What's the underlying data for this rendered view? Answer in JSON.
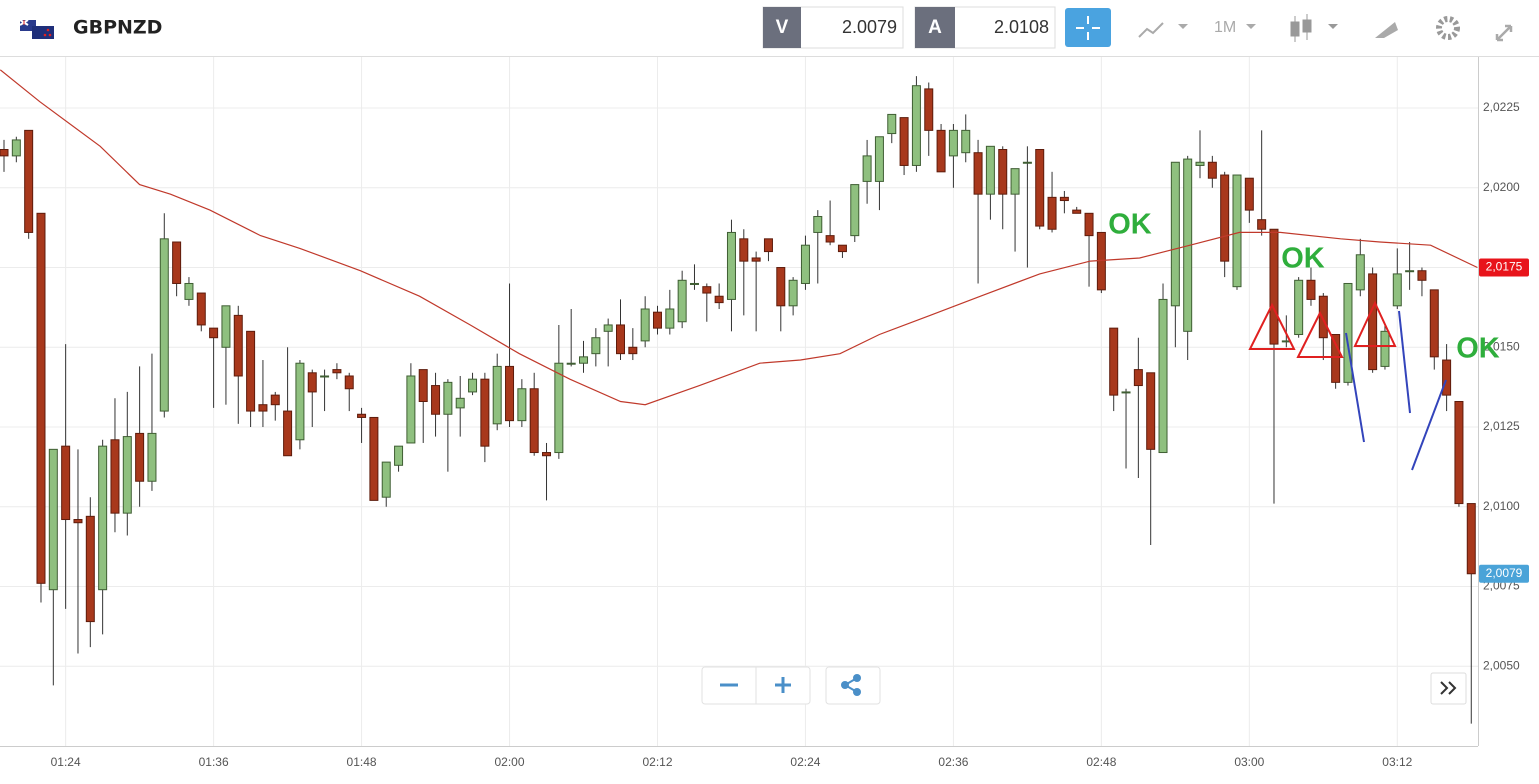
{
  "header": {
    "symbol": "GBPNZD",
    "sell_label": "V",
    "sell": "2.0079",
    "buy_label": "A",
    "buy": "2.0108",
    "timeframe": "1M"
  },
  "chart_data": {
    "type": "candlestick",
    "categories": [
      null,
      null,
      null,
      null,
      null,
      "01:24",
      null,
      null,
      null,
      null,
      null,
      null,
      null,
      null,
      null,
      null,
      null,
      "01:36",
      null,
      null,
      null,
      null,
      null,
      null,
      null,
      null,
      null,
      null,
      null,
      "01:48",
      null,
      null,
      null,
      null,
      null,
      null,
      null,
      null,
      null,
      null,
      null,
      "02:00",
      null,
      null,
      null,
      null,
      null,
      null,
      null,
      null,
      null,
      null,
      null,
      "02:12",
      null,
      null,
      null,
      null,
      null,
      null,
      null,
      null,
      null,
      null,
      null,
      "02:24",
      null,
      null,
      null,
      null,
      null,
      null,
      null,
      null,
      null,
      null,
      null,
      "02:36",
      null,
      null,
      null,
      null,
      null,
      null,
      null,
      null,
      null,
      null,
      null,
      "02:48",
      null,
      null,
      null,
      null,
      null,
      null,
      null,
      null,
      null,
      null,
      null,
      "03:00",
      null,
      null,
      null,
      null,
      null,
      null,
      null,
      null,
      null,
      null,
      null,
      "03:12",
      null,
      null,
      null,
      null,
      null,
      null
    ],
    "open": [
      2.0212,
      2.021,
      2.0218,
      2.0192,
      2.0074,
      2.0119,
      2.0096,
      2.0097,
      2.0074,
      2.0121,
      2.0098,
      2.0123,
      2.0108,
      2.013,
      2.0183,
      2.0165,
      2.0167,
      2.0156,
      2.015,
      2.016,
      2.0155,
      2.0132,
      2.0135,
      2.013,
      2.0121,
      2.0142,
      2.0141,
      2.0143,
      2.0141,
      2.0129,
      2.0128,
      2.0103,
      2.0113,
      2.012,
      2.0143,
      2.0138,
      2.0129,
      2.0131,
      2.0136,
      2.014,
      2.0126,
      2.0144,
      2.0127,
      2.0137,
      2.0117,
      2.0117,
      2.0145,
      2.0145,
      2.0148,
      2.0155,
      2.0157,
      2.015,
      2.0152,
      2.0161,
      2.0156,
      2.0158,
      2.017,
      2.0169,
      2.0166,
      2.0165,
      2.0184,
      2.0178,
      2.0184,
      2.0175,
      2.0163,
      2.017,
      2.0186,
      2.0185,
      2.0182,
      2.0185,
      2.0202,
      2.0202,
      2.0217,
      2.0222,
      2.0207,
      2.0231,
      2.0218,
      2.021,
      2.0211,
      2.0211,
      2.0198,
      2.0212,
      2.0198,
      2.0208,
      2.0212,
      2.0197,
      2.0197,
      2.0193,
      2.0192,
      2.0186,
      2.0156,
      2.0136,
      2.0143,
      2.0142,
      2.0117,
      2.0163,
      2.0155,
      2.0207,
      2.0208,
      2.0204,
      2.0169,
      2.0203,
      2.019,
      2.0187,
      2.0152,
      2.0154,
      2.0171,
      2.0166,
      2.0154,
      2.0139,
      2.0168,
      2.0173,
      2.0144,
      2.0163,
      2.0174,
      2.0174,
      2.0168,
      2.0146,
      2.0133,
      2.0101
    ],
    "high": [
      2.0215,
      2.0216,
      2.0218,
      2.0192,
      2.0118,
      2.0151,
      2.0118,
      2.0103,
      2.0121,
      2.0134,
      2.0136,
      2.0144,
      2.0148,
      2.0192,
      2.0183,
      2.0172,
      2.0167,
      2.0156,
      2.0163,
      2.0163,
      2.0155,
      2.0146,
      2.0136,
      2.015,
      2.0146,
      2.0143,
      2.0143,
      2.0145,
      2.0142,
      2.0131,
      2.0128,
      2.0114,
      2.0119,
      2.0145,
      2.0143,
      2.0142,
      2.014,
      2.0141,
      2.0142,
      2.0142,
      2.0148,
      2.017,
      2.014,
      2.0142,
      2.012,
      2.0157,
      2.0162,
      2.0152,
      2.0156,
      2.0159,
      2.0165,
      2.0156,
      2.0166,
      2.0163,
      2.0168,
      2.0174,
      2.0176,
      2.017,
      2.017,
      2.019,
      2.0187,
      2.018,
      2.0184,
      2.0175,
      2.0172,
      2.0185,
      2.0193,
      2.0196,
      2.0182,
      2.0201,
      2.0215,
      2.0216,
      2.0223,
      2.0222,
      2.0235,
      2.0233,
      2.022,
      2.022,
      2.0223,
      2.0215,
      2.0213,
      2.0213,
      2.0206,
      2.0213,
      2.0212,
      2.0205,
      2.0199,
      2.0194,
      2.0192,
      2.0186,
      2.0156,
      2.0137,
      2.0153,
      2.0142,
      2.017,
      2.0208,
      2.021,
      2.0218,
      2.021,
      2.0205,
      2.0204,
      2.0203,
      2.0218,
      2.0187,
      2.016,
      2.0172,
      2.0175,
      2.0167,
      2.0154,
      2.017,
      2.0184,
      2.0175,
      2.0157,
      2.0181,
      2.0183,
      2.0175,
      2.0168,
      2.0151,
      2.0133,
      2.0101
    ],
    "low": [
      2.0205,
      2.0208,
      2.0184,
      2.007,
      2.0044,
      2.0068,
      2.0054,
      2.0056,
      2.006,
      2.0092,
      2.0091,
      2.01,
      2.0105,
      2.0128,
      2.0166,
      2.0163,
      2.0155,
      2.0131,
      2.0132,
      2.0126,
      2.0125,
      2.0125,
      2.0127,
      2.0116,
      2.0118,
      2.0125,
      2.013,
      2.014,
      2.013,
      2.012,
      2.0102,
      2.01,
      2.0111,
      2.012,
      2.012,
      2.0122,
      2.0111,
      2.0122,
      2.0135,
      2.0114,
      2.0124,
      2.0125,
      2.0125,
      2.0116,
      2.0102,
      2.0115,
      2.0144,
      2.0142,
      2.0144,
      2.0144,
      2.0146,
      2.0146,
      2.015,
      2.0154,
      2.0154,
      2.0156,
      2.0168,
      2.0158,
      2.0162,
      2.0155,
      2.016,
      2.0155,
      2.0177,
      2.0155,
      2.016,
      2.0168,
      2.017,
      2.0182,
      2.0178,
      2.0183,
      2.0195,
      2.0193,
      2.0214,
      2.0204,
      2.0205,
      2.021,
      2.0205,
      2.02,
      2.0208,
      2.017,
      2.019,
      2.0187,
      2.018,
      2.0175,
      2.0187,
      2.0186,
      2.0192,
      2.0192,
      2.0169,
      2.0167,
      2.013,
      2.0112,
      2.0109,
      2.0088,
      2.0117,
      2.015,
      2.0146,
      2.0203,
      2.02,
      2.0172,
      2.0168,
      2.0189,
      2.0185,
      2.0101,
      2.015,
      2.0153,
      2.0163,
      2.0146,
      2.0137,
      2.0138,
      2.0166,
      2.0142,
      2.0143,
      2.0162,
      2.0168,
      2.0166,
      2.0143,
      2.013,
      2.01,
      2.0032
    ],
    "close": [
      2.021,
      2.0215,
      2.0186,
      2.0076,
      2.0118,
      2.0096,
      2.0095,
      2.0064,
      2.0119,
      2.0098,
      2.0122,
      2.0108,
      2.0123,
      2.0184,
      2.017,
      2.017,
      2.0157,
      2.0153,
      2.0163,
      2.0141,
      2.013,
      2.013,
      2.0132,
      2.0116,
      2.0145,
      2.0136,
      2.0141,
      2.0142,
      2.0137,
      2.0128,
      2.0102,
      2.0114,
      2.0119,
      2.0141,
      2.0133,
      2.0129,
      2.0139,
      2.0134,
      2.014,
      2.0119,
      2.0144,
      2.0127,
      2.0137,
      2.0117,
      2.0116,
      2.0145,
      2.0145,
      2.0147,
      2.0153,
      2.0157,
      2.0148,
      2.0148,
      2.0162,
      2.0156,
      2.0162,
      2.0171,
      2.017,
      2.0167,
      2.0164,
      2.0186,
      2.0177,
      2.0177,
      2.018,
      2.0163,
      2.0171,
      2.0182,
      2.0191,
      2.0183,
      2.018,
      2.0201,
      2.021,
      2.0216,
      2.0223,
      2.0207,
      2.0232,
      2.0218,
      2.0205,
      2.0218,
      2.0218,
      2.0198,
      2.0213,
      2.0198,
      2.0206,
      2.0208,
      2.0188,
      2.0187,
      2.0196,
      2.0192,
      2.0185,
      2.0168,
      2.0135,
      2.0136,
      2.0138,
      2.0118,
      2.0165,
      2.0208,
      2.0209,
      2.0208,
      2.0203,
      2.0177,
      2.0204,
      2.0193,
      2.0187,
      2.0151,
      2.0152,
      2.0171,
      2.0165,
      2.0153,
      2.0139,
      2.017,
      2.0179,
      2.0143,
      2.0155,
      2.0173,
      2.0174,
      2.0171,
      2.0147,
      2.0135,
      2.0101,
      2.0079
    ],
    "up_color": "#8fc07f",
    "down_color": "#a8381c",
    "moving_average": {
      "color": "#c0392b",
      "x": [
        -0.3,
        2.9,
        7.8,
        11.0,
        13.5,
        16.7,
        20.8,
        24.0,
        28.9,
        33.7,
        37.8,
        41.8,
        45.9,
        50.0,
        52.0,
        56.4,
        61.3,
        64.6,
        67.8,
        71.0,
        75.1,
        79.2,
        84.0,
        88.1,
        92.1,
        96.2,
        100.2,
        103.5,
        108.4,
        111.6,
        115.7,
        119.5
      ],
      "values": [
        2.0237,
        2.0227,
        2.0213,
        2.0201,
        2.0198,
        2.0193,
        2.0185,
        2.0181,
        2.0174,
        2.0166,
        2.0157,
        2.0148,
        2.014,
        2.0133,
        2.0132,
        2.0138,
        2.0145,
        2.0146,
        2.0148,
        2.0154,
        2.016,
        2.0166,
        2.0173,
        2.0177,
        2.0178,
        2.0182,
        2.0186,
        2.0186,
        2.0184,
        2.0183,
        2.0182,
        2.0175
      ]
    },
    "price_labels": [
      {
        "value": 2.0175,
        "label": "2,0175",
        "color": "#e8141b"
      },
      {
        "value": 2.0079,
        "label": "2,0079",
        "color": "#4aa3d8"
      }
    ],
    "annotations": [
      "OK",
      "OK",
      "OK"
    ],
    "ylim": [
      2.0025,
      2.0241
    ],
    "yticks": [
      {
        "value": 2.005,
        "label": "2,0050"
      },
      {
        "value": 2.0075,
        "label": "2,0075"
      },
      {
        "value": 2.01,
        "label": "2,0100"
      },
      {
        "value": 2.0125,
        "label": "2,0125"
      },
      {
        "value": 2.015,
        "label": "2,0150"
      },
      {
        "value": 2.0175,
        "label": "2,0175"
      },
      {
        "value": 2.02,
        "label": "2,0200"
      },
      {
        "value": 2.0225,
        "label": "2,0225"
      }
    ],
    "grid": true
  }
}
